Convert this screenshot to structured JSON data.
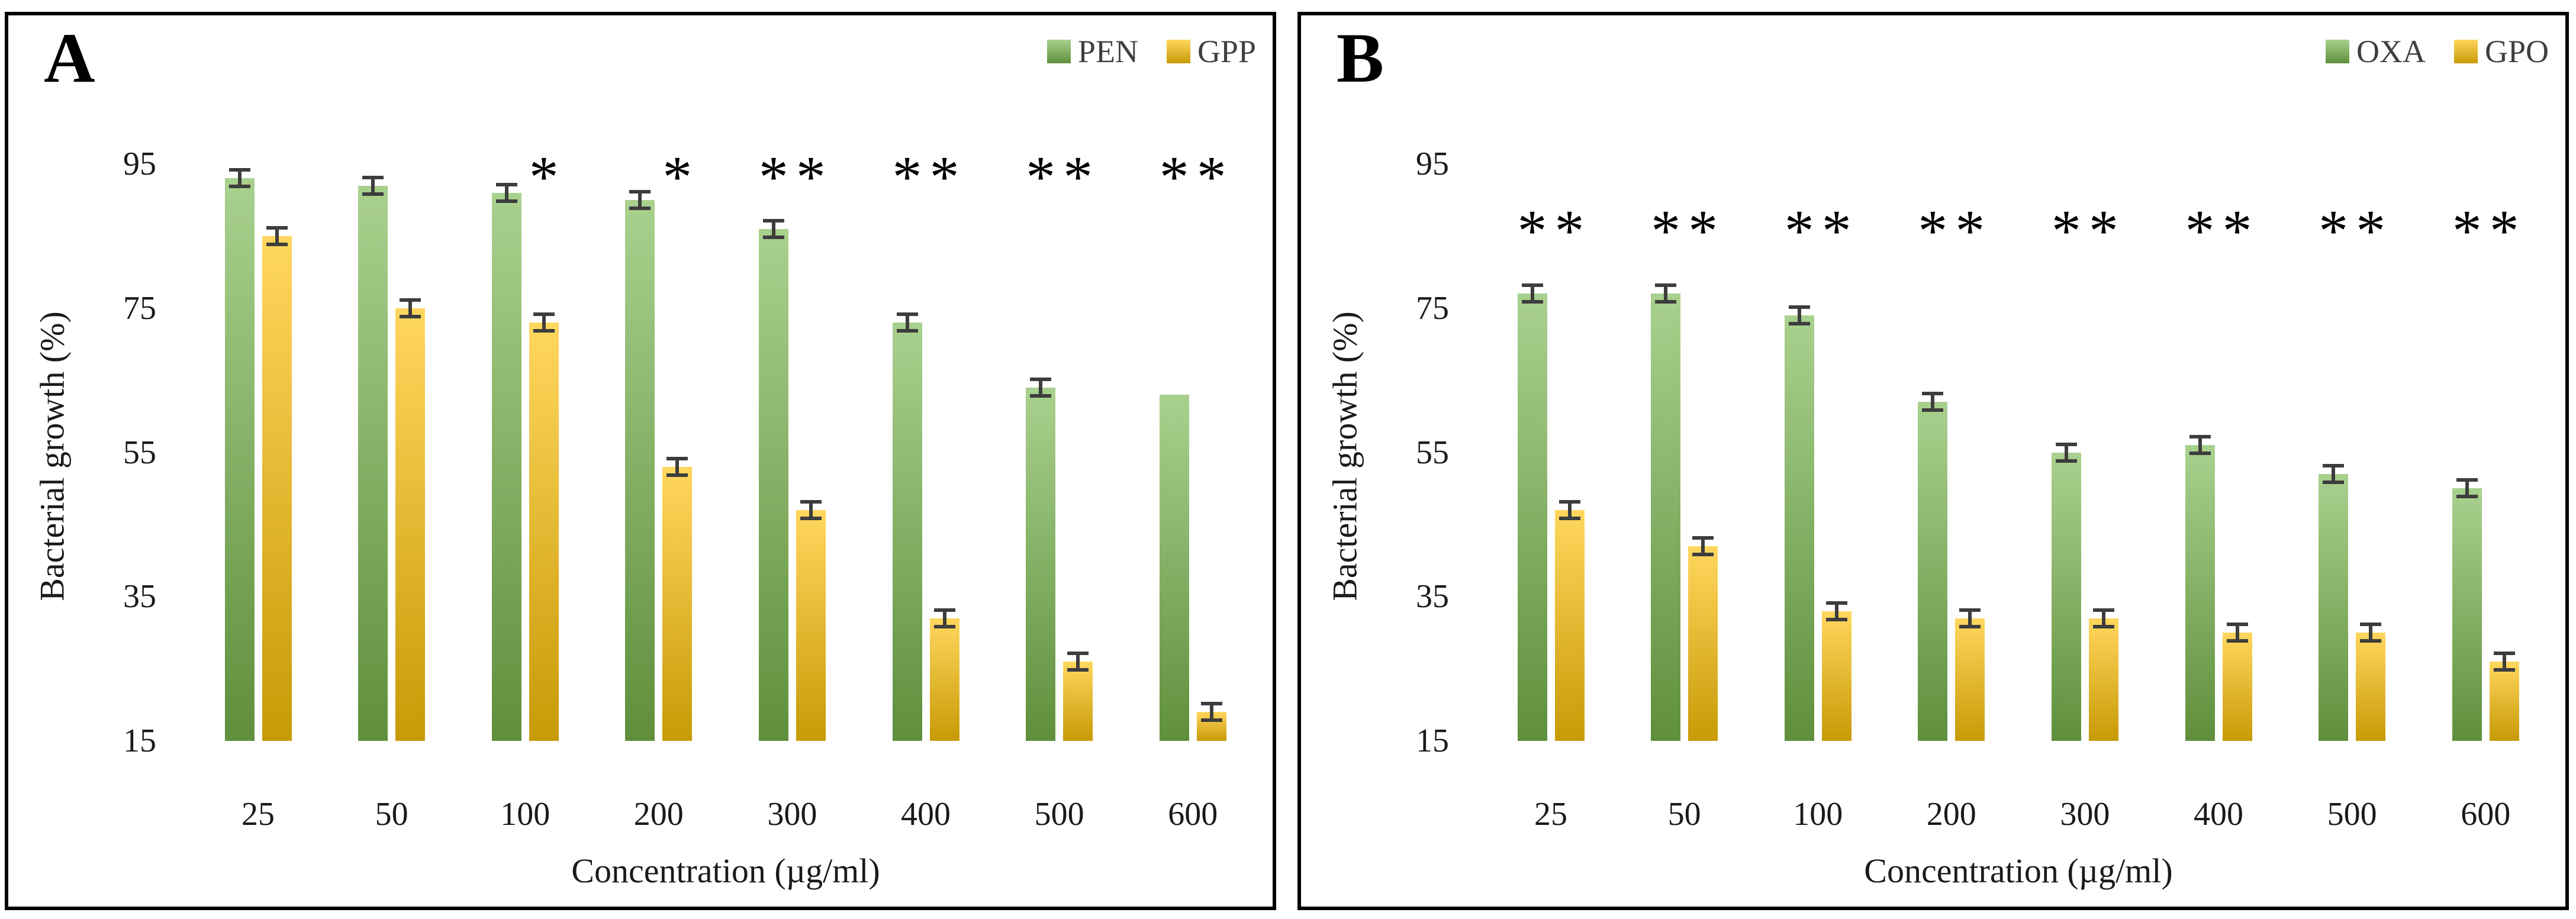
{
  "chart_data": [
    {
      "type": "bar",
      "panel_label": "A",
      "categories": [
        "25",
        "50",
        "100",
        "200",
        "300",
        "400",
        "500",
        "600"
      ],
      "series": [
        {
          "name": "PEN",
          "palette": "green",
          "color_top": "#a9d18e",
          "color_bottom": "#5f8f3c",
          "values": [
            93,
            92,
            91,
            90,
            86,
            73,
            64,
            63
          ],
          "asterisk": [
            false,
            false,
            false,
            false,
            true,
            true,
            true,
            true
          ],
          "error_bars": [
            true,
            true,
            true,
            true,
            true,
            true,
            true,
            false
          ]
        },
        {
          "name": "GPP",
          "palette": "yellow",
          "color_top": "#ffd75e",
          "color_bottom": "#c79a06",
          "values": [
            85,
            75,
            73,
            53,
            47,
            32,
            26,
            19
          ],
          "asterisk": [
            false,
            false,
            true,
            true,
            true,
            true,
            true,
            true
          ],
          "error_bars": [
            true,
            true,
            true,
            true,
            true,
            true,
            true,
            true
          ]
        }
      ],
      "xlabel": "Concentration (µg/ml)",
      "ylabel": "Bacterial growth (%)",
      "yticks": [
        15,
        35,
        55,
        75,
        95
      ],
      "ylim": [
        15,
        100
      ],
      "grid": false,
      "legend_position": "top-right",
      "significance_marker": "*",
      "significance_row_y": 95
    },
    {
      "type": "bar",
      "panel_label": "B",
      "categories": [
        "25",
        "50",
        "100",
        "200",
        "300",
        "400",
        "500",
        "600"
      ],
      "series": [
        {
          "name": "OXA",
          "palette": "green",
          "color_top": "#a9d18e",
          "color_bottom": "#5f8f3c",
          "values": [
            77,
            77,
            74,
            62,
            55,
            56,
            52,
            50
          ],
          "asterisk": [
            true,
            true,
            true,
            true,
            true,
            true,
            true,
            true
          ],
          "error_bars": [
            true,
            true,
            true,
            true,
            true,
            true,
            true,
            true
          ]
        },
        {
          "name": "GPO",
          "palette": "yellow",
          "color_top": "#ffd75e",
          "color_bottom": "#c79a06",
          "values": [
            47,
            42,
            33,
            32,
            32,
            30,
            30,
            26
          ],
          "asterisk": [
            true,
            true,
            true,
            true,
            true,
            true,
            true,
            true
          ],
          "error_bars": [
            true,
            true,
            true,
            true,
            true,
            true,
            true,
            true
          ]
        }
      ],
      "xlabel": "Concentration (µg/ml)",
      "ylabel": "Bacterial growth (%)",
      "yticks": [
        15,
        35,
        55,
        75,
        95
      ],
      "ylim": [
        15,
        100
      ],
      "grid": false,
      "legend_position": "top-right",
      "significance_marker": "*",
      "significance_row_y": 87.5
    }
  ],
  "style": {
    "error_bar_color": "#3d3d3d",
    "text_color": "#1a1a1a",
    "legend_text_color": "#3f3f3f",
    "panel_border_color": "#000000"
  }
}
